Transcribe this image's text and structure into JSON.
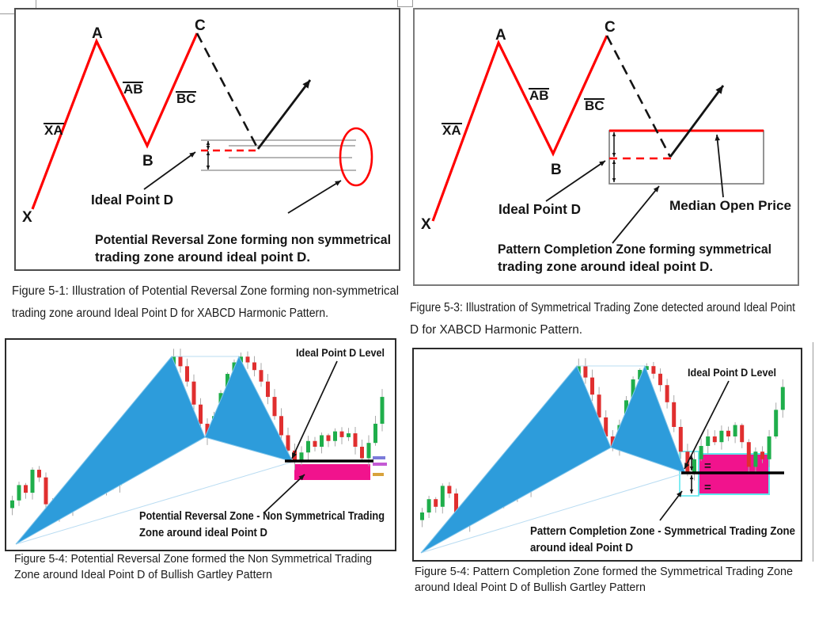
{
  "document": {
    "figures": {
      "fig1": {
        "point_labels": {
          "X": "X",
          "A": "A",
          "B": "B",
          "C": "C"
        },
        "leg_labels": {
          "XA": "XA",
          "AB": "AB",
          "BC": "BC"
        },
        "annotation_ideal_point": "Ideal Point D",
        "zone_text": [
          "Potential Reversal Zone forming non symmetrical",
          "trading zone around ideal point D."
        ],
        "caption": [
          "Figure 5-1: Illustration of Potential Reversal Zone forming non-symmetrical",
          "trading zone around Ideal Point D for XABCD Harmonic Pattern."
        ]
      },
      "fig2": {
        "point_labels": {
          "X": "X",
          "A": "A",
          "B": "B",
          "C": "C"
        },
        "leg_labels": {
          "XA": "XA",
          "AB": "AB",
          "BC": "BC"
        },
        "annotation_ideal_point": "Ideal Point D",
        "annotation_median": "Median Open Price",
        "zone_text": [
          "Pattern Completion Zone forming symmetrical",
          "trading zone around ideal point D."
        ],
        "caption": [
          "Figure 5-3: Illustration of Symmetrical Trading Zone detected around Ideal Point",
          "D for XABCD Harmonic Pattern."
        ]
      },
      "fig3": {
        "annotation_d_level": "Ideal Point D Level",
        "zone_text": [
          "Potential Reversal Zone - Non Symmetrical Trading",
          "Zone around ideal Point D"
        ],
        "caption": [
          "Figure 5-4: Potential Reversal Zone formed the Non Symmetrical Trading",
          "Zone around Ideal Point D of Bullish Gartley Pattern"
        ]
      },
      "fig4": {
        "annotation_d_level": "Ideal Point D Level",
        "equals": "=",
        "zone_text": [
          "Pattern Completion Zone - Symmetrical Trading Zone",
          "around ideal Point D"
        ],
        "caption": [
          "Figure 5-4: Pattern Completion Zone formed the Symmetrical Trading Zone",
          "around Ideal Point D of Bullish Gartley Pattern"
        ]
      }
    }
  },
  "colors": {
    "red_line": "#FF0000",
    "ink": "#141414",
    "gray_zone_line": "#8a8a8a",
    "rect_border": "#7a7a7a",
    "triangle_blue": "#2D9CDB",
    "triangle_edge": "#7fc4ea",
    "light_pattern_line": "#b9dcf2",
    "zone_pink": "#F1138D",
    "cyan_border": "#5FE8EE",
    "candle_green": "#1FAE4B",
    "candle_red": "#E02F2F",
    "wick_gray": "#aaaaaa",
    "price_marks": [
      "#7b7bd9",
      "#c45ad4",
      "#d8a23c"
    ]
  },
  "chart_data": [
    {
      "type": "candlestick",
      "figure": "Figure 5-4 (left)",
      "pattern": "Bullish Gartley XABCD",
      "units": "normalized price 0-100, estimated from pixels",
      "closes": [
        22,
        30,
        26,
        38,
        34,
        20,
        15,
        21,
        18,
        24,
        29,
        26,
        31,
        28,
        33,
        30,
        37,
        44,
        40,
        52,
        60,
        70,
        80,
        90,
        97,
        92,
        84,
        72,
        62,
        55,
        66,
        78,
        88,
        94,
        97,
        94,
        90,
        84,
        76,
        66,
        56,
        48,
        42,
        47,
        53,
        50,
        56,
        53,
        58,
        55,
        57,
        50,
        44,
        52,
        62,
        76
      ],
      "pattern_point_indices": {
        "X": 0,
        "A": 24,
        "B": 29,
        "C": 34,
        "D": 42
      },
      "overlays": [
        "blue filled triangles X-A-B and B-C-D",
        "black Ideal Point D level line",
        "magenta Potential Reversal Zone box below the D level"
      ]
    },
    {
      "type": "candlestick",
      "figure": "Figure 5-4 (right)",
      "pattern": "Bullish Gartley XABCD",
      "units": "normalized price 0-100, estimated from pixels",
      "closes": [
        20,
        27,
        23,
        34,
        30,
        17,
        14,
        20,
        24,
        21,
        27,
        25,
        31,
        29,
        35,
        32,
        40,
        47,
        44,
        56,
        68,
        80,
        90,
        97,
        91,
        82,
        70,
        60,
        54,
        66,
        79,
        90,
        95,
        97,
        93,
        87,
        78,
        65,
        52,
        41,
        48,
        55,
        60,
        57,
        63,
        60,
        66,
        57,
        44,
        52,
        48,
        60,
        74,
        86
      ],
      "pattern_point_indices": {
        "X": 0,
        "A": 23,
        "B": 28,
        "C": 33,
        "D": 39
      },
      "overlays": [
        "blue filled triangles X-A-B and B-C-D",
        "black Ideal Point D level line through middle of zone",
        "magenta Pattern Completion Zone box with cyan border split into two equal halves"
      ]
    }
  ]
}
